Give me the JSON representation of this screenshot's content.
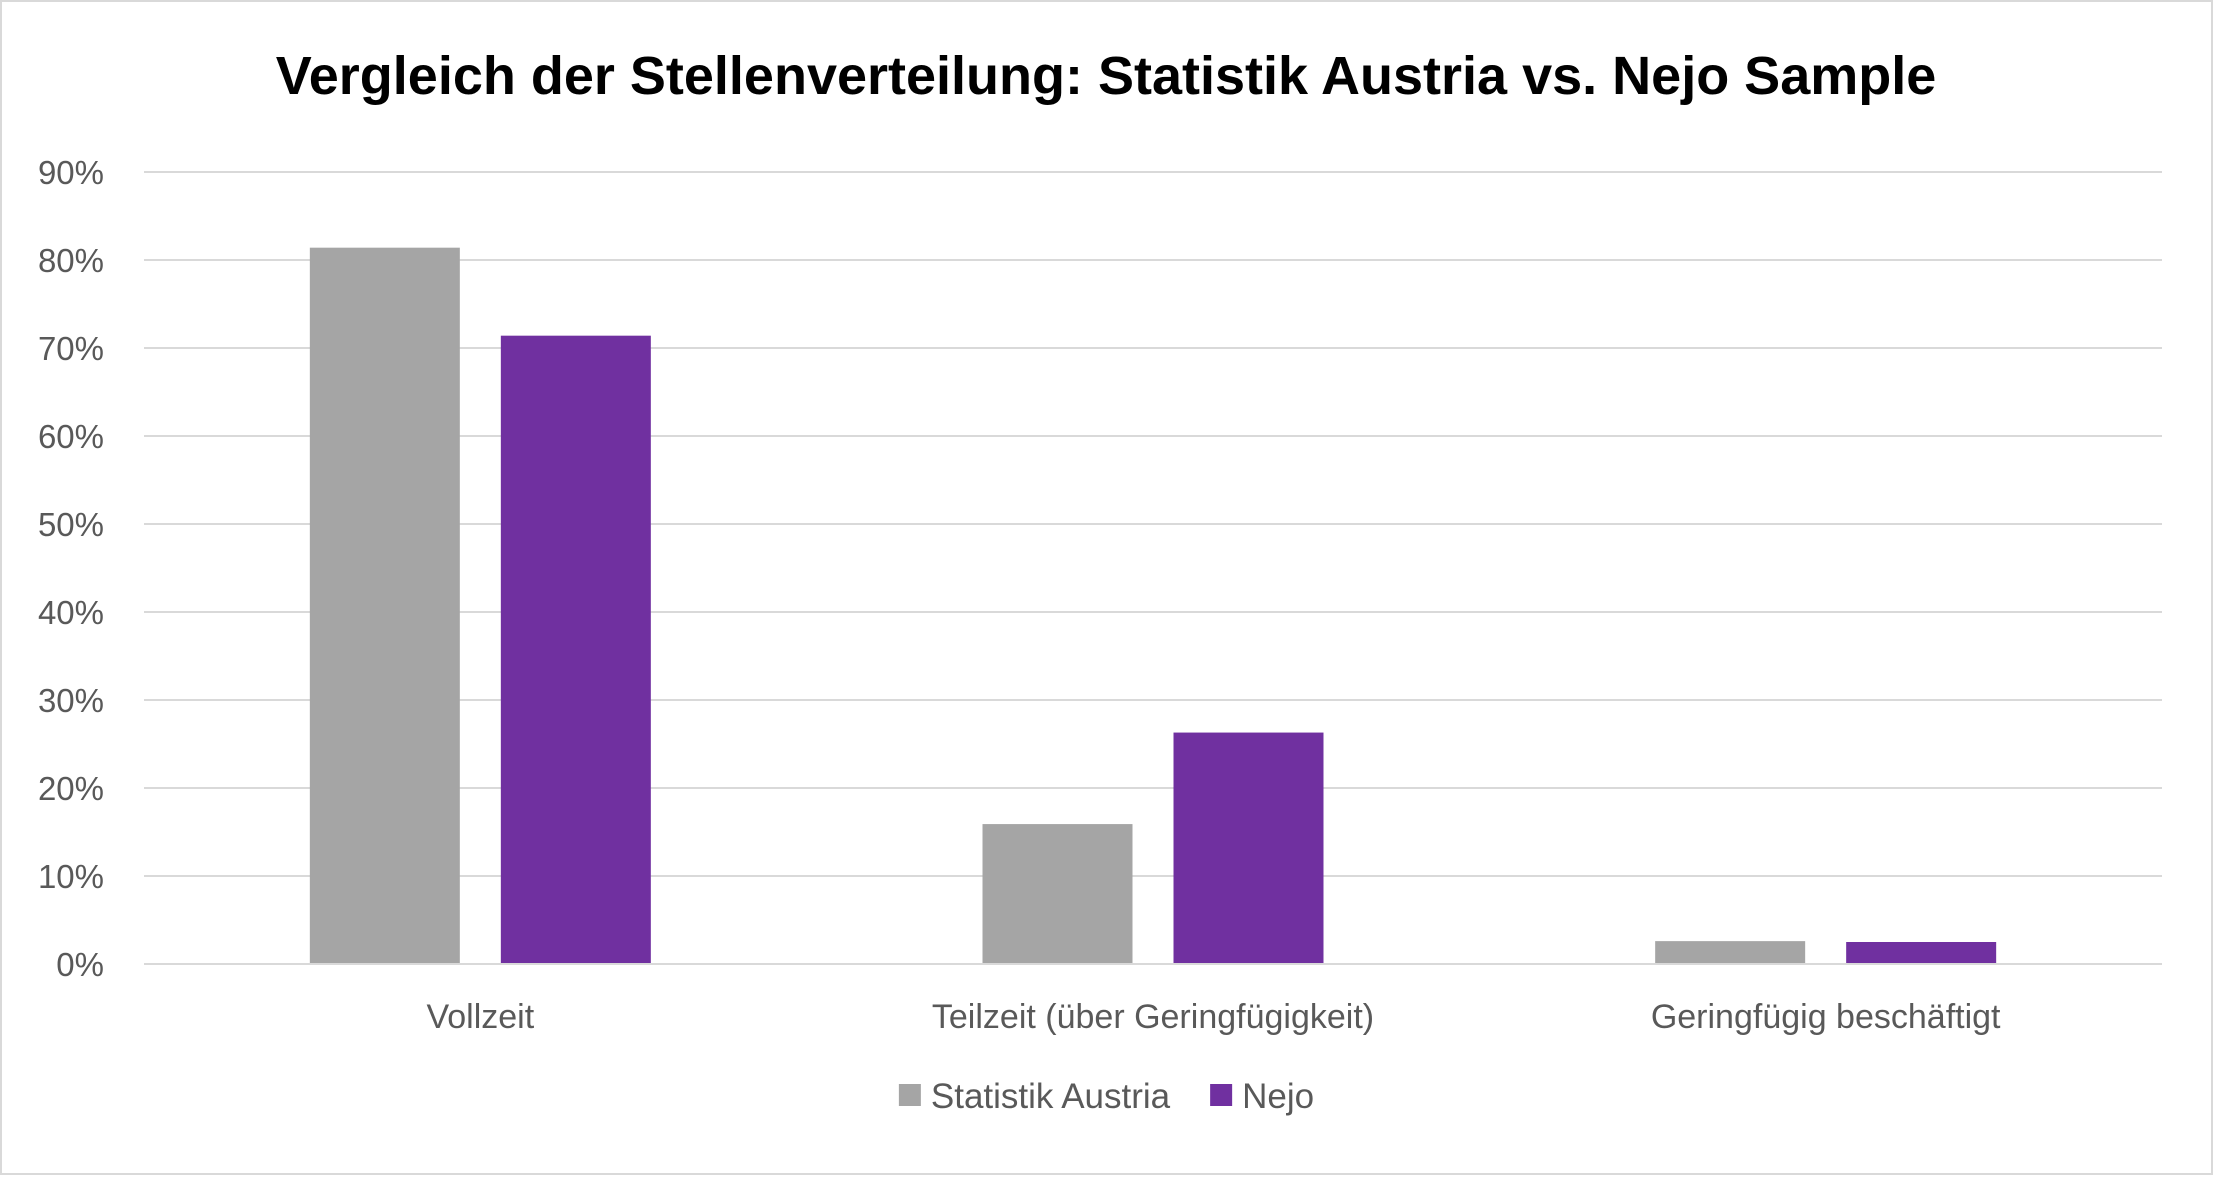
{
  "chart_data": {
    "type": "bar",
    "title": "Vergleich der Stellenverteilung: Statistik Austria vs. Nejo Sample",
    "xlabel": "",
    "ylabel": "",
    "categories": [
      "Vollzeit",
      "Teilzeit (über Geringfügigkeit)",
      "Geringfügig beschäftigt"
    ],
    "series": [
      {
        "name": "Statistik Austria",
        "color": "#a5a5a5",
        "values": [
          0.814,
          0.159,
          0.026
        ]
      },
      {
        "name": "Nejo",
        "color": "#7030a0",
        "values": [
          0.714,
          0.263,
          0.025
        ]
      }
    ],
    "ylim": [
      0,
      0.9
    ],
    "yticks": [
      0,
      0.1,
      0.2,
      0.3,
      0.4,
      0.5,
      0.6,
      0.7,
      0.8,
      0.9
    ],
    "ytick_labels": [
      "0%",
      "10%",
      "20%",
      "30%",
      "40%",
      "50%",
      "60%",
      "70%",
      "80%",
      "90%"
    ],
    "grid": true,
    "gridline_color": "#d9d9d9",
    "legend_position": "bottom"
  }
}
